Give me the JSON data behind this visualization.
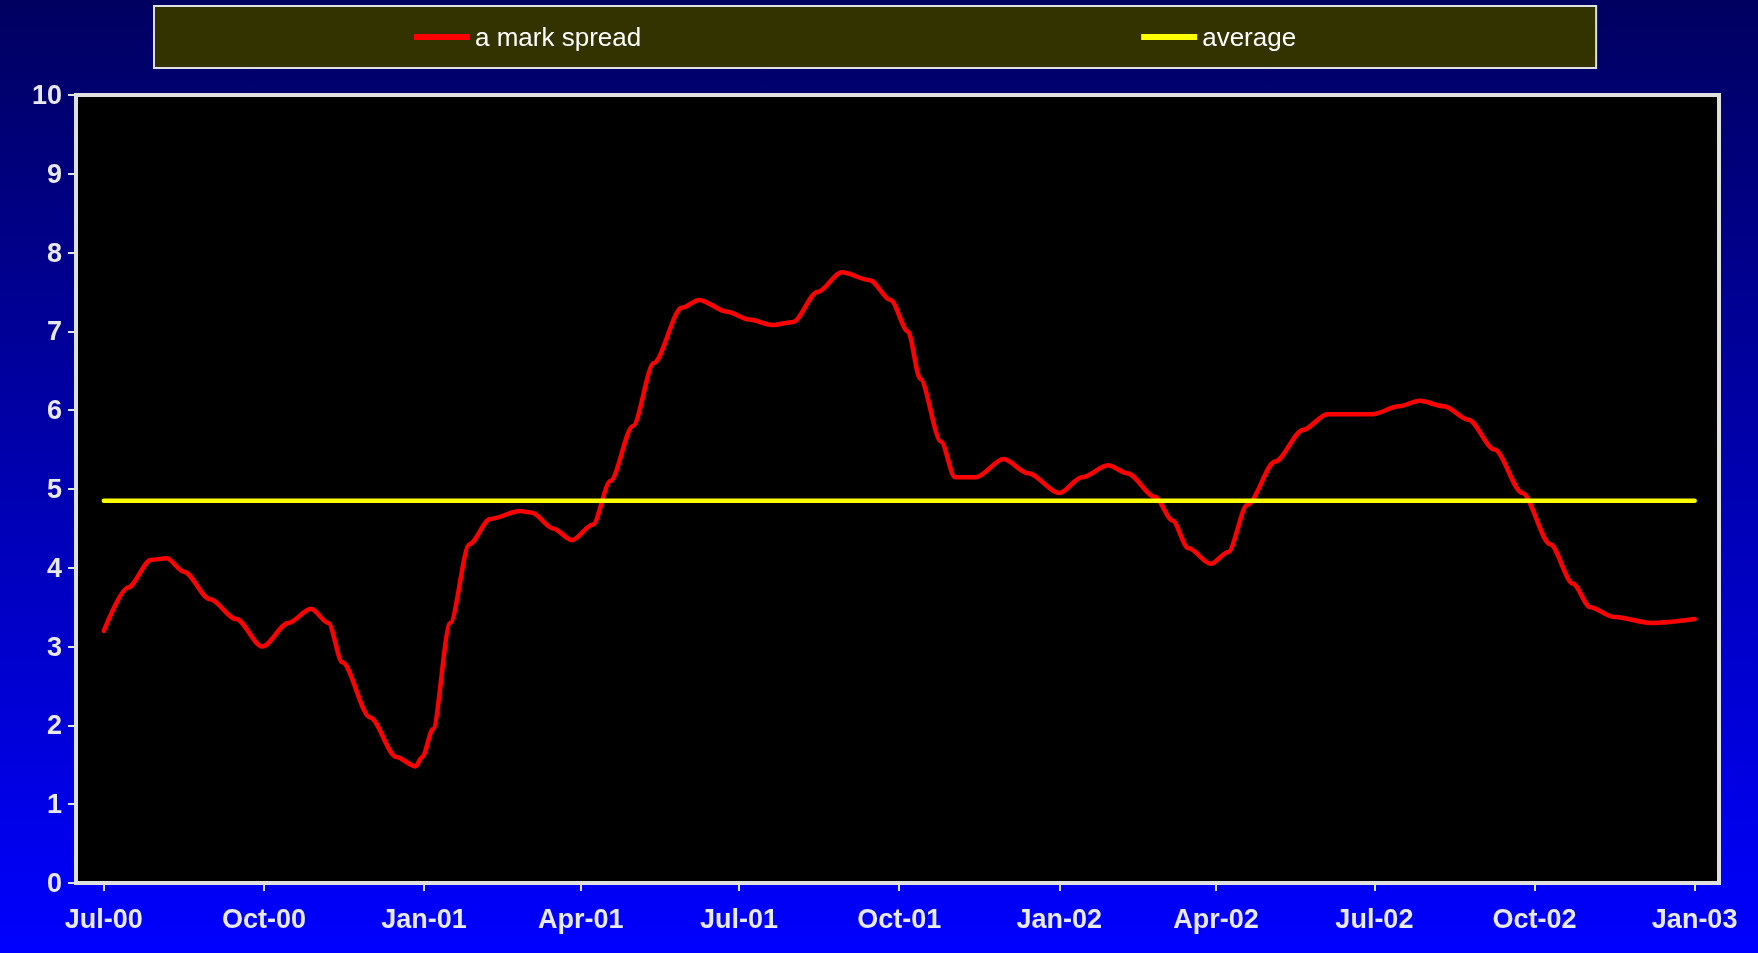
{
  "chart_data": {
    "type": "line",
    "xlim": [
      "2000-06-15",
      "2003-01-15"
    ],
    "xticks": [
      {
        "value": "2000-07-01",
        "label": "Jul-00"
      },
      {
        "value": "2000-10-01",
        "label": "Oct-00"
      },
      {
        "value": "2001-01-01",
        "label": "Jan-01"
      },
      {
        "value": "2001-04-01",
        "label": "Apr-01"
      },
      {
        "value": "2001-07-01",
        "label": "Jul-01"
      },
      {
        "value": "2001-10-01",
        "label": "Oct-01"
      },
      {
        "value": "2002-01-01",
        "label": "Jan-02"
      },
      {
        "value": "2002-04-01",
        "label": "Apr-02"
      },
      {
        "value": "2002-07-01",
        "label": "Jul-02"
      },
      {
        "value": "2002-10-01",
        "label": "Oct-02"
      },
      {
        "value": "2003-01-01",
        "label": "Jan-03"
      }
    ],
    "ylim": [
      0,
      10
    ],
    "yticks": [
      0,
      1,
      2,
      3,
      4,
      5,
      6,
      7,
      8,
      9,
      10
    ],
    "grid": false,
    "legend": "top",
    "marker": "none",
    "line_style": "solid",
    "series": [
      {
        "name": "a mark spread",
        "color": "#ff0000",
        "x": [
          "2000-07-01",
          "2000-07-15",
          "2000-07-28",
          "2000-08-06",
          "2000-08-16",
          "2000-08-31",
          "2000-09-15",
          "2000-09-30",
          "2000-10-15",
          "2000-10-28",
          "2000-11-07",
          "2000-11-15",
          "2000-12-01",
          "2000-12-16",
          "2000-12-27",
          "2000-12-31",
          "2001-01-06",
          "2001-01-16",
          "2001-01-27",
          "2001-02-08",
          "2001-02-25",
          "2001-03-04",
          "2001-03-16",
          "2001-03-27",
          "2001-04-08",
          "2001-04-18",
          "2001-05-01",
          "2001-05-13",
          "2001-05-29",
          "2001-06-08",
          "2001-06-24",
          "2001-07-07",
          "2001-07-20",
          "2001-08-01",
          "2001-08-15",
          "2001-08-29",
          "2001-09-14",
          "2001-09-26",
          "2001-10-06",
          "2001-10-13",
          "2001-10-25",
          "2001-11-02",
          "2001-11-14",
          "2001-11-30",
          "2001-12-14",
          "2002-01-01",
          "2002-01-14",
          "2002-01-29",
          "2002-02-09",
          "2002-02-25",
          "2002-03-07",
          "2002-03-16",
          "2002-03-29",
          "2002-04-08",
          "2002-04-19",
          "2002-05-05",
          "2002-05-21",
          "2002-06-04",
          "2002-06-30",
          "2002-07-15",
          "2002-07-27",
          "2002-08-10",
          "2002-08-24",
          "2002-09-08",
          "2002-09-24",
          "2002-10-10",
          "2002-10-23",
          "2002-11-02",
          "2002-11-15",
          "2002-12-07",
          "2003-01-01"
        ],
        "values": [
          3.2,
          3.75,
          4.1,
          4.12,
          3.95,
          3.6,
          3.35,
          3.0,
          3.3,
          3.48,
          3.3,
          2.8,
          2.1,
          1.6,
          1.48,
          1.6,
          1.95,
          3.3,
          4.3,
          4.62,
          4.72,
          4.7,
          4.5,
          4.35,
          4.55,
          5.1,
          5.8,
          6.6,
          7.3,
          7.4,
          7.25,
          7.15,
          7.08,
          7.12,
          7.5,
          7.75,
          7.65,
          7.4,
          7.0,
          6.4,
          5.6,
          5.15,
          5.15,
          5.38,
          5.2,
          4.95,
          5.15,
          5.3,
          5.2,
          4.9,
          4.6,
          4.25,
          4.05,
          4.2,
          4.8,
          5.35,
          5.75,
          5.95,
          5.95,
          6.05,
          6.12,
          6.05,
          5.88,
          5.5,
          4.95,
          4.3,
          3.8,
          3.5,
          3.38,
          3.3,
          3.35
        ]
      },
      {
        "name": "average",
        "color": "#ffff00",
        "x": [
          "2000-07-01",
          "2003-01-01"
        ],
        "values": [
          4.85,
          4.85
        ]
      }
    ]
  }
}
